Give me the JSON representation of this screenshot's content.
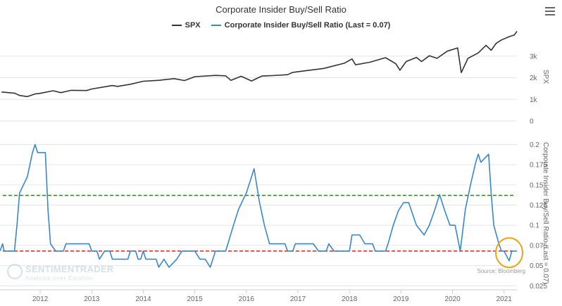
{
  "chart_data": {
    "type": "line",
    "title": "Corporate Insider Buy/Sell Ratio",
    "source": "Source: Bloomberg",
    "watermark": {
      "name": "SENTIMENTRADER",
      "tagline": "Analysis over Emotion"
    },
    "legend": {
      "placement": "top-center"
    },
    "x_ticks": [
      "2012",
      "2013",
      "2014",
      "2015",
      "2016",
      "2017",
      "2018",
      "2019",
      "2020",
      "2021"
    ],
    "xlim": [
      2011.22,
      2021.25
    ],
    "panels": [
      {
        "ylabel": "SPX",
        "yticks": [
          "0",
          "1k",
          "2k",
          "3k"
        ],
        "ylim": [
          0,
          4100
        ],
        "grid": true,
        "series": [
          {
            "name": "SPX",
            "color": "#333333",
            "points": [
              [
                2011.25,
                1340
              ],
              [
                2011.5,
                1290
              ],
              [
                2011.6,
                1180
              ],
              [
                2011.75,
                1130
              ],
              [
                2011.9,
                1250
              ],
              [
                2012.0,
                1280
              ],
              [
                2012.25,
                1400
              ],
              [
                2012.4,
                1310
              ],
              [
                2012.6,
                1420
              ],
              [
                2012.9,
                1410
              ],
              [
                2013.0,
                1480
              ],
              [
                2013.4,
                1640
              ],
              [
                2013.5,
                1600
              ],
              [
                2013.75,
                1700
              ],
              [
                2014.0,
                1840
              ],
              [
                2014.3,
                1880
              ],
              [
                2014.6,
                1960
              ],
              [
                2014.8,
                1870
              ],
              [
                2015.0,
                2050
              ],
              [
                2015.4,
                2110
              ],
              [
                2015.6,
                2090
              ],
              [
                2015.7,
                1880
              ],
              [
                2015.9,
                2070
              ],
              [
                2016.1,
                1850
              ],
              [
                2016.3,
                2080
              ],
              [
                2016.5,
                2100
              ],
              [
                2016.8,
                2140
              ],
              [
                2016.9,
                2250
              ],
              [
                2017.0,
                2280
              ],
              [
                2017.5,
                2430
              ],
              [
                2017.9,
                2670
              ],
              [
                2018.05,
                2870
              ],
              [
                2018.12,
                2600
              ],
              [
                2018.4,
                2720
              ],
              [
                2018.7,
                2930
              ],
              [
                2018.9,
                2650
              ],
              [
                2018.98,
                2350
              ],
              [
                2019.1,
                2750
              ],
              [
                2019.3,
                2940
              ],
              [
                2019.4,
                2750
              ],
              [
                2019.55,
                3020
              ],
              [
                2019.7,
                2900
              ],
              [
                2019.9,
                3230
              ],
              [
                2020.1,
                3380
              ],
              [
                2020.17,
                2240
              ],
              [
                2020.3,
                2900
              ],
              [
                2020.5,
                3150
              ],
              [
                2020.65,
                3500
              ],
              [
                2020.75,
                3270
              ],
              [
                2020.85,
                3600
              ],
              [
                2020.95,
                3750
              ],
              [
                2021.1,
                3900
              ],
              [
                2021.2,
                3980
              ],
              [
                2021.25,
                4150
              ]
            ]
          }
        ]
      },
      {
        "ylabel": "Corporate Insider Buy/Sell Ratio (Last = 0.07)",
        "yticks": [
          "0.025",
          "0.05",
          "0.075",
          "0.1",
          "0.125",
          "0.15",
          "0.175",
          "0.2"
        ],
        "ylim": [
          0.02,
          0.21
        ],
        "reference_lines": [
          {
            "value": 0.137,
            "color": "#2e8b1f",
            "style": "dashed"
          },
          {
            "value": 0.068,
            "color": "#dd2222",
            "style": "dashed"
          }
        ],
        "annotation": {
          "type": "circle",
          "x": 2021.1,
          "y": 0.066,
          "color": "#e8a317"
        },
        "series": [
          {
            "name": "Corporate Insider Buy/Sell Ratio (Last = 0.07)",
            "color": "#3a87c8",
            "points": [
              [
                2011.22,
                0.068
              ],
              [
                2011.27,
                0.077
              ],
              [
                2011.3,
                0.068
              ],
              [
                2011.5,
                0.068
              ],
              [
                2011.55,
                0.1
              ],
              [
                2011.6,
                0.14
              ],
              [
                2011.75,
                0.16
              ],
              [
                2011.85,
                0.19
              ],
              [
                2011.9,
                0.2
              ],
              [
                2011.95,
                0.19
              ],
              [
                2012.1,
                0.19
              ],
              [
                2012.15,
                0.12
              ],
              [
                2012.2,
                0.077
              ],
              [
                2012.3,
                0.068
              ],
              [
                2012.45,
                0.068
              ],
              [
                2012.5,
                0.077
              ],
              [
                2012.95,
                0.077
              ],
              [
                2013.0,
                0.068
              ],
              [
                2013.1,
                0.068
              ],
              [
                2013.15,
                0.058
              ],
              [
                2013.25,
                0.068
              ],
              [
                2013.35,
                0.068
              ],
              [
                2013.4,
                0.058
              ],
              [
                2013.7,
                0.058
              ],
              [
                2013.75,
                0.068
              ],
              [
                2013.85,
                0.068
              ],
              [
                2013.9,
                0.058
              ],
              [
                2013.95,
                0.058
              ],
              [
                2014.0,
                0.068
              ],
              [
                2014.05,
                0.058
              ],
              [
                2014.25,
                0.058
              ],
              [
                2014.3,
                0.048
              ],
              [
                2014.4,
                0.058
              ],
              [
                2014.5,
                0.048
              ],
              [
                2014.65,
                0.058
              ],
              [
                2014.75,
                0.068
              ],
              [
                2015.0,
                0.068
              ],
              [
                2015.1,
                0.058
              ],
              [
                2015.2,
                0.058
              ],
              [
                2015.3,
                0.048
              ],
              [
                2015.4,
                0.068
              ],
              [
                2015.6,
                0.068
              ],
              [
                2015.75,
                0.1
              ],
              [
                2015.85,
                0.12
              ],
              [
                2016.0,
                0.14
              ],
              [
                2016.15,
                0.17
              ],
              [
                2016.25,
                0.13
              ],
              [
                2016.35,
                0.1
              ],
              [
                2016.45,
                0.077
              ],
              [
                2016.75,
                0.077
              ],
              [
                2016.8,
                0.068
              ],
              [
                2016.9,
                0.068
              ],
              [
                2016.95,
                0.077
              ],
              [
                2017.3,
                0.077
              ],
              [
                2017.4,
                0.068
              ],
              [
                2017.55,
                0.068
              ],
              [
                2017.6,
                0.077
              ],
              [
                2017.7,
                0.068
              ],
              [
                2017.8,
                0.068
              ],
              [
                2017.85,
                0.068
              ],
              [
                2018.0,
                0.068
              ],
              [
                2018.05,
                0.088
              ],
              [
                2018.2,
                0.088
              ],
              [
                2018.3,
                0.077
              ],
              [
                2018.45,
                0.077
              ],
              [
                2018.5,
                0.068
              ],
              [
                2018.7,
                0.068
              ],
              [
                2018.75,
                0.077
              ],
              [
                2018.85,
                0.1
              ],
              [
                2018.95,
                0.118
              ],
              [
                2019.05,
                0.128
              ],
              [
                2019.15,
                0.128
              ],
              [
                2019.3,
                0.1
              ],
              [
                2019.45,
                0.088
              ],
              [
                2019.55,
                0.1
              ],
              [
                2019.65,
                0.118
              ],
              [
                2019.75,
                0.138
              ],
              [
                2019.85,
                0.118
              ],
              [
                2019.95,
                0.1
              ],
              [
                2020.05,
                0.1
              ],
              [
                2020.15,
                0.068
              ],
              [
                2020.25,
                0.12
              ],
              [
                2020.35,
                0.15
              ],
              [
                2020.45,
                0.178
              ],
              [
                2020.5,
                0.188
              ],
              [
                2020.55,
                0.178
              ],
              [
                2020.7,
                0.188
              ],
              [
                2020.75,
                0.14
              ],
              [
                2020.8,
                0.1
              ],
              [
                2020.9,
                0.077
              ],
              [
                2020.95,
                0.068
              ],
              [
                2021.0,
                0.068
              ],
              [
                2021.1,
                0.056
              ],
              [
                2021.15,
                0.068
              ],
              [
                2021.25,
                0.068
              ]
            ]
          }
        ]
      }
    ]
  }
}
